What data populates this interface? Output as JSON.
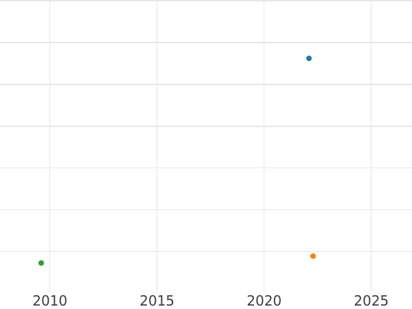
{
  "colors": {
    "background": "#ffffff",
    "grid": "#e6e6e6",
    "tick_label": "#3d3d3d"
  },
  "chart_data": {
    "type": "scatter",
    "title": "",
    "xlabel": "",
    "ylabel": "",
    "grid": true,
    "legend_visible": false,
    "x_ticks": [
      2010,
      2015,
      2020,
      2025
    ],
    "x_range": [
      2007.67,
      2026.9
    ],
    "y_range": [
      0,
      7.02
    ],
    "y_tick_labels_visible": false,
    "y_gridline_units": [
      1,
      2,
      3,
      4,
      5,
      6,
      7
    ],
    "series": [
      {
        "name": "blue",
        "color": "#1f77b4",
        "points": [
          {
            "x": 2022.1,
            "y": 5.62
          }
        ]
      },
      {
        "name": "orange",
        "color": "#ff7f0e",
        "points": [
          {
            "x": 2022.3,
            "y": 0.89
          }
        ]
      },
      {
        "name": "green",
        "color": "#2ca02c",
        "points": [
          {
            "x": 2009.6,
            "y": 0.73
          }
        ]
      }
    ]
  }
}
